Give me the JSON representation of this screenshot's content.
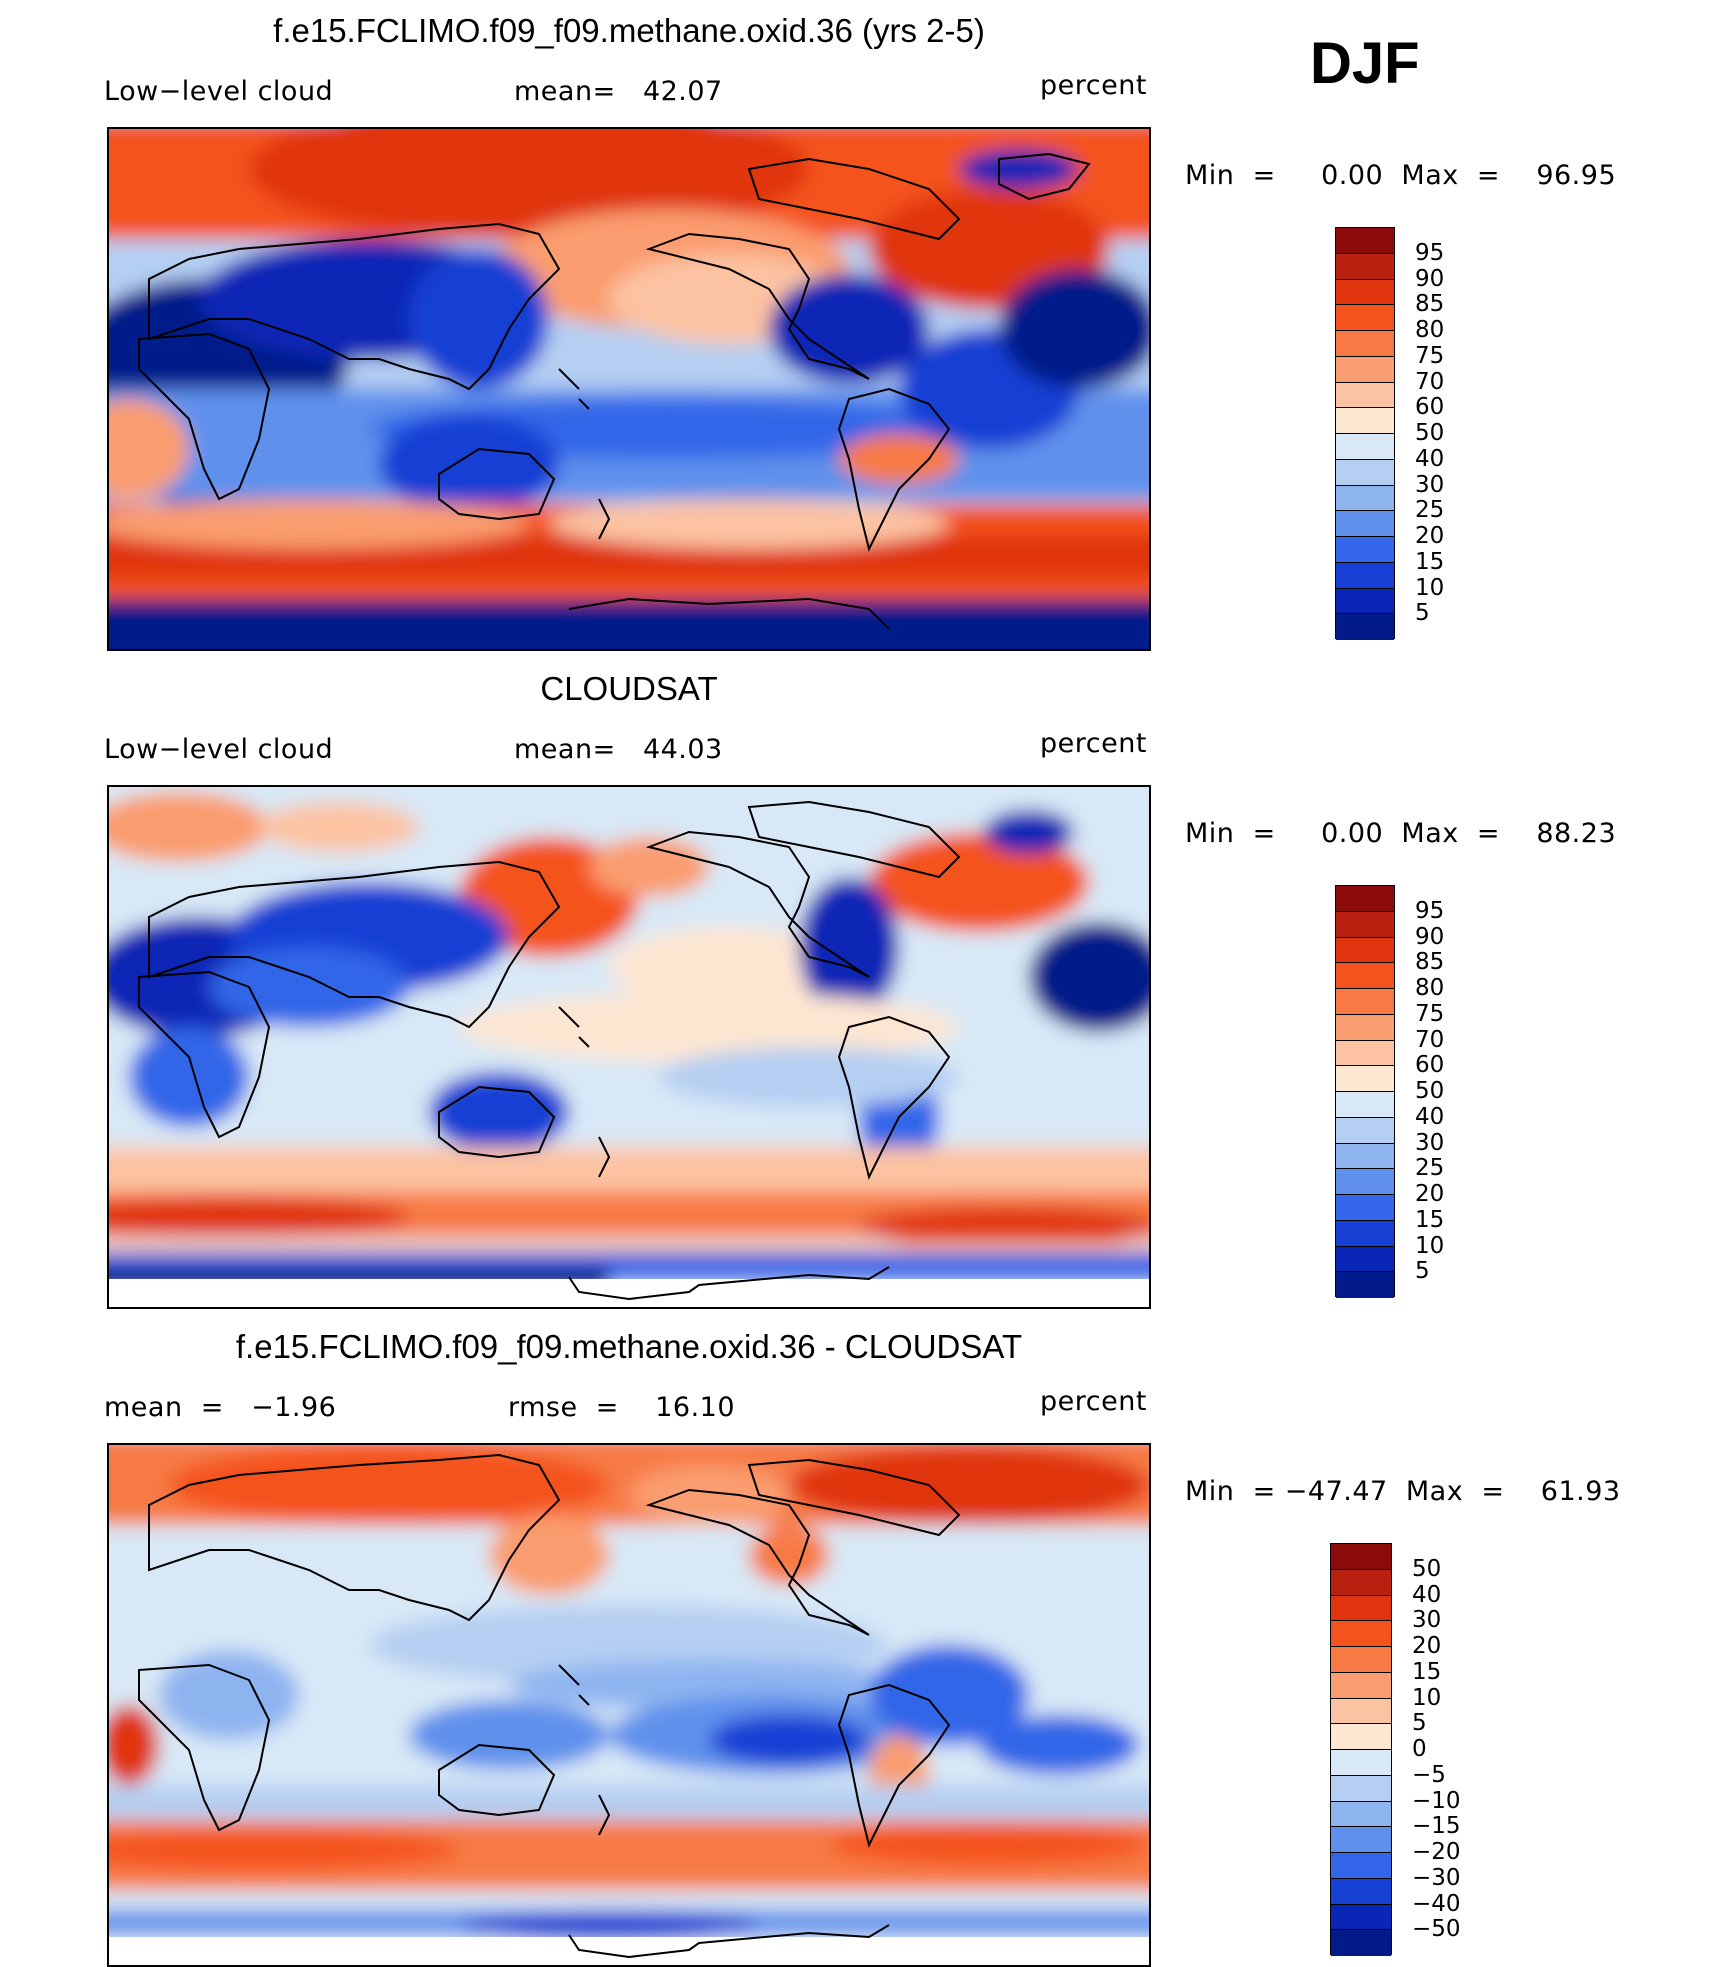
{
  "header": {
    "season": "DJF"
  },
  "panels": [
    {
      "title": "f.e15.FCLIMO.f09_f09.methane.oxid.36 (yrs 2-5)",
      "left_label": "Low−level cloud",
      "center_label": "mean=   42.07",
      "right_label": "percent",
      "minmax": "Min  =     0.00  Max  =    96.95",
      "colorbar": {
        "labels": [
          "95",
          "90",
          "85",
          "80",
          "75",
          "70",
          "60",
          "50",
          "40",
          "30",
          "25",
          "20",
          "15",
          "10",
          "5"
        ],
        "colors": [
          "#8b0a0a",
          "#b8200f",
          "#e0340f",
          "#f4531e",
          "#f77a45",
          "#fa9d70",
          "#fcc3a2",
          "#fde6d2",
          "#d8e8f6",
          "#b5cff2",
          "#8eb4f0",
          "#5f91ec",
          "#3366e8",
          "#1741d4",
          "#0926b6",
          "#031a8a"
        ]
      }
    },
    {
      "title": "CLOUDSAT",
      "left_label": "Low−level cloud",
      "center_label": "mean=   44.03",
      "right_label": "percent",
      "minmax": "Min  =     0.00  Max  =    88.23",
      "colorbar": {
        "labels": [
          "95",
          "90",
          "85",
          "80",
          "75",
          "70",
          "60",
          "50",
          "40",
          "30",
          "25",
          "20",
          "15",
          "10",
          "5"
        ],
        "colors": [
          "#8b0a0a",
          "#b8200f",
          "#e0340f",
          "#f4531e",
          "#f77a45",
          "#fa9d70",
          "#fcc3a2",
          "#fde6d2",
          "#d8e8f6",
          "#b5cff2",
          "#8eb4f0",
          "#5f91ec",
          "#3366e8",
          "#1741d4",
          "#0926b6",
          "#031a8a"
        ]
      }
    },
    {
      "title": "f.e15.FCLIMO.f09_f09.methane.oxid.36 - CLOUDSAT",
      "left_label": "mean  =   −1.96",
      "center_label": "rmse  =    16.10",
      "right_label": "percent",
      "minmax": "Min  = −47.47  Max  =    61.93",
      "colorbar": {
        "labels": [
          "50",
          "40",
          "30",
          "20",
          "15",
          "10",
          "5",
          "0",
          "−5",
          "−10",
          "−15",
          "−20",
          "−30",
          "−40",
          "−50"
        ],
        "colors": [
          "#8b0a0a",
          "#b8200f",
          "#e0340f",
          "#f4531e",
          "#f77a45",
          "#fa9d70",
          "#fcc3a2",
          "#fde6d2",
          "#d8e8f6",
          "#b5cff2",
          "#8eb4f0",
          "#5f91ec",
          "#3366e8",
          "#1741d4",
          "#0926b6",
          "#031a8a"
        ]
      }
    }
  ]
}
